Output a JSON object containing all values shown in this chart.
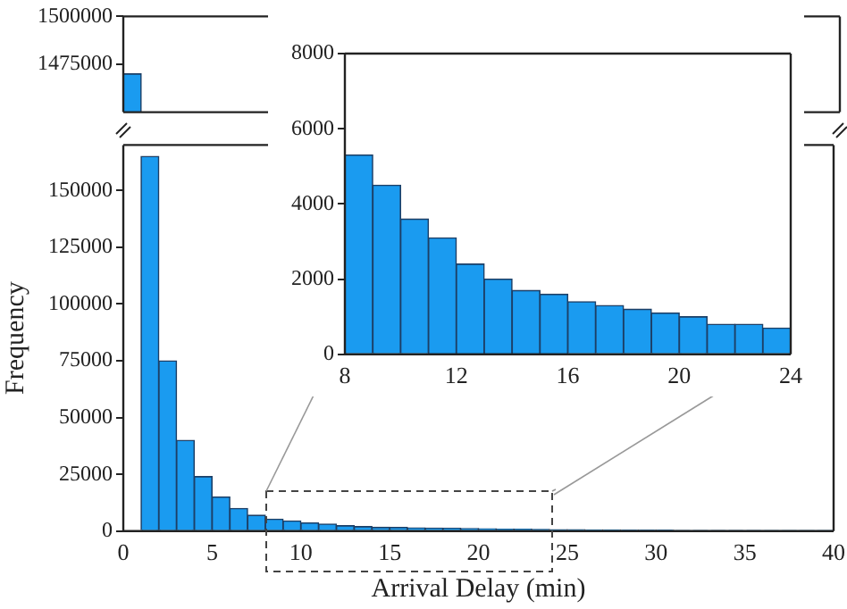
{
  "chart_data": [
    {
      "type": "histogram",
      "bins": [
        0,
        1
      ],
      "values": [
        1470000
      ],
      "color": "#1a9bf0",
      "xlim": [
        0,
        40
      ],
      "ylim": [
        1450000,
        1500000
      ],
      "yticks": [
        1475000,
        1500000
      ],
      "tick_labels": "y",
      "grid": false
    },
    {
      "type": "histogram",
      "xlabel": "Arrival Delay (min)",
      "ylabel": "Frequency",
      "bins": [
        0,
        1,
        2,
        3,
        4,
        5,
        6,
        7,
        8,
        9,
        10,
        11,
        12,
        13,
        14,
        15,
        16,
        17,
        18,
        19,
        20,
        21,
        22,
        23,
        24,
        25,
        26,
        27,
        28,
        29,
        30,
        31,
        32,
        33,
        34,
        35,
        36,
        37,
        38,
        39,
        40
      ],
      "values": [
        null,
        165000,
        75000,
        40000,
        24000,
        15000,
        10000,
        7000,
        5300,
        4500,
        3600,
        3100,
        2400,
        2000,
        1700,
        1600,
        1400,
        1300,
        1200,
        1100,
        1000,
        800,
        800,
        700,
        600,
        600,
        500,
        500,
        400,
        400,
        400,
        300,
        300,
        300,
        300,
        300,
        200,
        200,
        200,
        200
      ],
      "color": "#1a9bf0",
      "xlim": [
        0,
        40
      ],
      "xticks": [
        0,
        5,
        10,
        15,
        20,
        25,
        30,
        35,
        40
      ],
      "ylim": [
        0,
        170000
      ],
      "yticks": [
        0,
        25000,
        50000,
        75000,
        100000,
        125000,
        150000
      ],
      "grid": false
    },
    {
      "type": "histogram",
      "bins": [
        8,
        9,
        10,
        11,
        12,
        13,
        14,
        15,
        16,
        17,
        18,
        19,
        20,
        21,
        22,
        23,
        24
      ],
      "values": [
        5300,
        4500,
        3600,
        3100,
        2400,
        2000,
        1700,
        1600,
        1400,
        1300,
        1200,
        1100,
        1000,
        800,
        800,
        700
      ],
      "color": "#1a9bf0",
      "xlim": [
        8,
        24
      ],
      "xticks": [
        8,
        12,
        16,
        20,
        24
      ],
      "ylim": [
        0,
        8000
      ],
      "yticks": [
        0,
        2000,
        4000,
        6000,
        8000
      ],
      "grid": false
    }
  ]
}
